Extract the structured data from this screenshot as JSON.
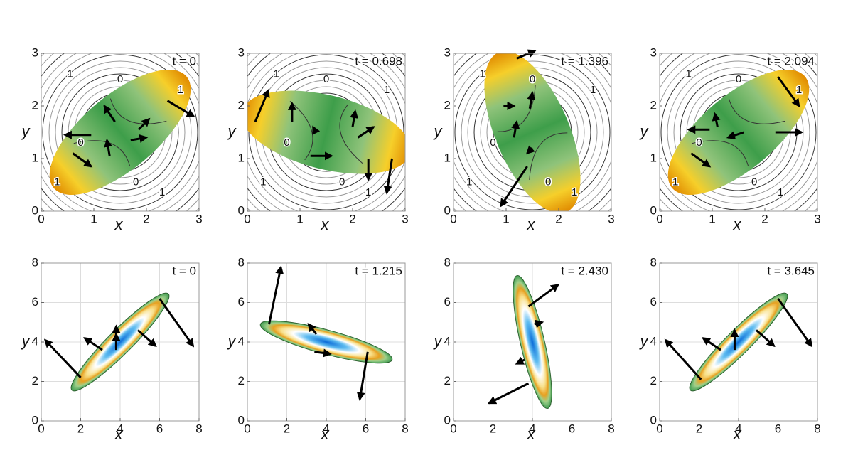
{
  "chart_data": [
    {
      "type": "field",
      "title": "t = 0",
      "xlabel": "x",
      "ylabel": "y",
      "xlim": [
        0,
        3
      ],
      "ylim": [
        0,
        3
      ],
      "xticks": [
        0,
        1,
        2,
        3
      ],
      "yticks": [
        0,
        1,
        2,
        3
      ],
      "grid": false,
      "contour_labels": [
        "1",
        "0",
        "1",
        "0",
        "0",
        "1",
        "1"
      ]
    },
    {
      "type": "field",
      "title": "t = 0.698",
      "xlabel": "x",
      "ylabel": "y",
      "xlim": [
        0,
        3
      ],
      "ylim": [
        0,
        3
      ],
      "xticks": [
        0,
        1,
        2,
        3
      ],
      "yticks": [
        0,
        1,
        2,
        3
      ],
      "grid": false,
      "contour_labels": [
        "1",
        "0",
        "1",
        "0",
        "0",
        "1",
        "1"
      ]
    },
    {
      "type": "field",
      "title": "t = 1.396",
      "xlabel": "x",
      "ylabel": "y",
      "xlim": [
        0,
        3
      ],
      "ylim": [
        0,
        3
      ],
      "xticks": [
        0,
        1,
        2,
        3
      ],
      "yticks": [
        0,
        1,
        2,
        3
      ],
      "grid": false,
      "contour_labels": [
        "1",
        "0",
        "1",
        "0",
        "0",
        "1",
        "1"
      ]
    },
    {
      "type": "field",
      "title": "t = 2.094",
      "xlabel": "x",
      "ylabel": "y",
      "xlim": [
        0,
        3
      ],
      "ylim": [
        0,
        3
      ],
      "xticks": [
        0,
        1,
        2,
        3
      ],
      "yticks": [
        0,
        1,
        2,
        3
      ],
      "grid": false,
      "contour_labels": [
        "1",
        "0",
        "1",
        "0",
        "0",
        "1",
        "1"
      ]
    },
    {
      "type": "density",
      "title": "t = 0",
      "xlabel": "x",
      "ylabel": "y",
      "xlim": [
        0,
        8
      ],
      "ylim": [
        0,
        8
      ],
      "xticks": [
        0,
        2,
        4,
        6,
        8
      ],
      "yticks": [
        0,
        2,
        4,
        6,
        8
      ],
      "grid": true
    },
    {
      "type": "density",
      "title": "t = 1.215",
      "xlabel": "x",
      "ylabel": "y",
      "xlim": [
        0,
        8
      ],
      "ylim": [
        0,
        8
      ],
      "xticks": [
        0,
        2,
        4,
        6,
        8
      ],
      "yticks": [
        0,
        2,
        4,
        6,
        8
      ],
      "grid": true
    },
    {
      "type": "density",
      "title": "t = 2.430",
      "xlabel": "x",
      "ylabel": "y",
      "xlim": [
        0,
        8
      ],
      "ylim": [
        0,
        8
      ],
      "xticks": [
        0,
        2,
        4,
        6,
        8
      ],
      "yticks": [
        0,
        2,
        4,
        6,
        8
      ],
      "grid": true
    },
    {
      "type": "density",
      "title": "t = 3.645",
      "xlabel": "x",
      "ylabel": "y",
      "xlim": [
        0,
        8
      ],
      "ylim": [
        0,
        8
      ],
      "xticks": [
        0,
        2,
        4,
        6,
        8
      ],
      "yticks": [
        0,
        2,
        4,
        6,
        8
      ],
      "grid": true
    }
  ]
}
